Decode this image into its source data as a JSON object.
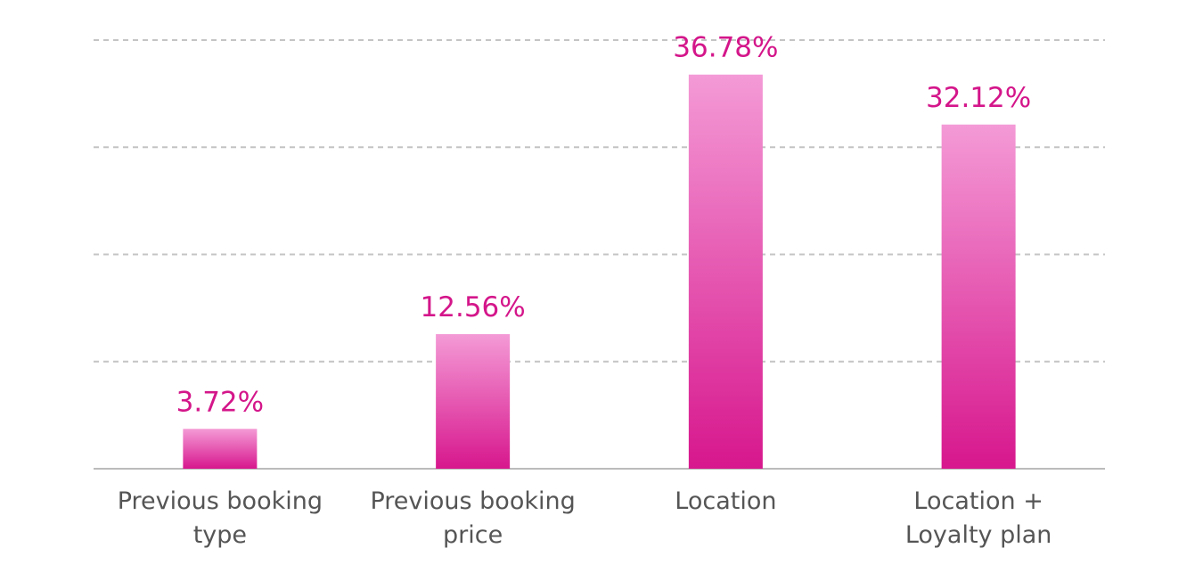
{
  "chart_data": {
    "type": "bar",
    "categories": [
      "Previous booking type",
      "Previous booking price",
      "Location",
      "Location +\nLoyalty plan"
    ],
    "values": [
      3.72,
      12.56,
      36.78,
      32.12
    ],
    "value_labels": [
      "3.72%",
      "12.56%",
      "36.78%",
      "32.12%"
    ],
    "color": "#d7178d",
    "ylim": [
      0,
      40
    ],
    "yticks": [
      0,
      10,
      20,
      30,
      40
    ],
    "grid": true,
    "tick_labels": false
  }
}
